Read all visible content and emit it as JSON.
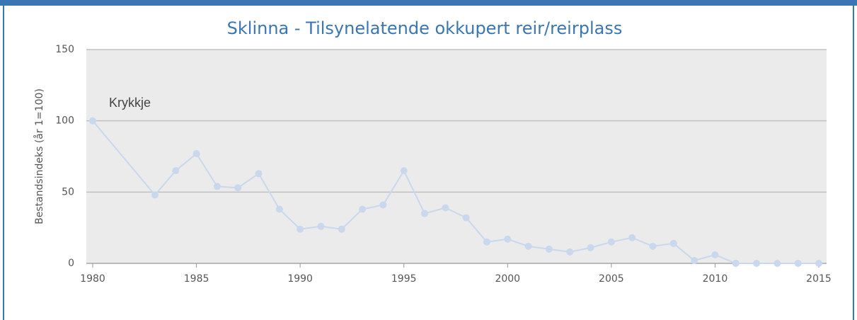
{
  "chart_data": {
    "type": "line",
    "title": "Sklinna - Tilsynelatende okkupert reir/reirplass",
    "y_label": "Bestandsindeks (år 1=100)",
    "x": [
      1980,
      1983,
      1984,
      1985,
      1986,
      1987,
      1988,
      1989,
      1990,
      1991,
      1992,
      1993,
      1994,
      1995,
      1996,
      1997,
      1998,
      1999,
      2000,
      2001,
      2002,
      2003,
      2004,
      2005,
      2006,
      2007,
      2008,
      2009,
      2010,
      2011,
      2012,
      2013,
      2014,
      2015
    ],
    "series": [
      {
        "name": "Krykkje",
        "color": "#c9d8ec",
        "values": [
          100,
          48,
          65,
          77,
          54,
          53,
          63,
          38,
          24,
          26,
          24,
          38,
          41,
          65,
          35,
          39,
          32,
          15,
          17,
          12,
          10,
          8,
          11,
          15,
          18,
          12,
          14,
          2,
          6,
          0,
          0,
          0,
          0,
          0
        ]
      }
    ],
    "xlim": [
      1980,
      2015
    ],
    "xticks": [
      1980,
      1985,
      1990,
      1995,
      2000,
      2005,
      2010,
      2015
    ],
    "ylim": [
      0,
      150
    ],
    "yticks": [
      0,
      50,
      100,
      150
    ],
    "grid": true
  }
}
